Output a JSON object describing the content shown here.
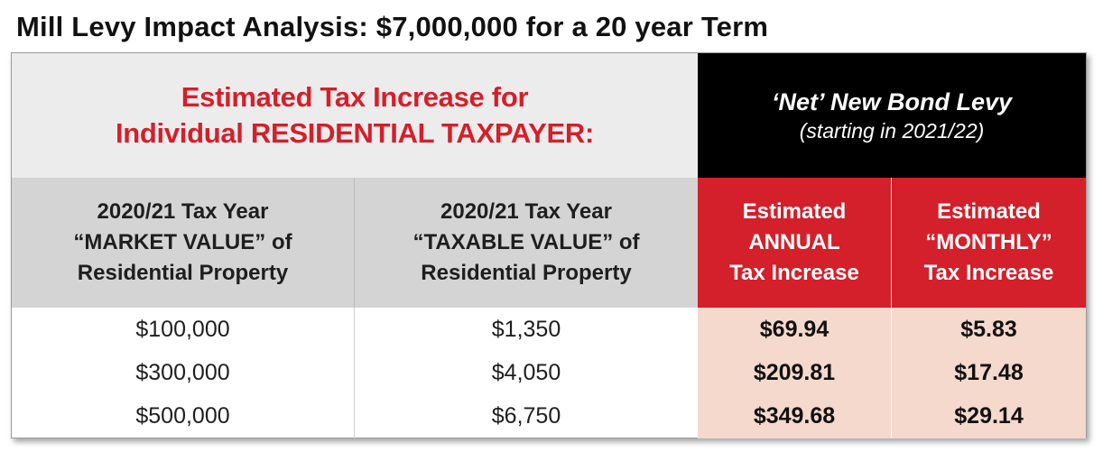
{
  "title": "Mill Levy Impact Analysis:  $7,000,000 for a 20 year Term",
  "header_left": {
    "line1": "Estimated Tax Increase for",
    "line2": "Individual RESIDENTIAL TAXPAYER:"
  },
  "header_right": {
    "line1": "‘Net’ New Bond Levy",
    "line2": "(starting in 2021/22)"
  },
  "columns": [
    {
      "lines": [
        "2020/21 Tax Year",
        "“MARKET VALUE” of",
        "Residential Property"
      ]
    },
    {
      "lines": [
        "2020/21 Tax Year",
        "“TAXABLE VALUE” of",
        "Residential Property"
      ]
    },
    {
      "lines": [
        "Estimated",
        "ANNUAL",
        "Tax Increase"
      ]
    },
    {
      "lines": [
        "Estimated",
        "“MONTHLY”",
        "Tax Increase"
      ]
    }
  ],
  "rows": [
    [
      "$100,000",
      "$1,350",
      "$69.94",
      "$5.83"
    ],
    [
      "$300,000",
      "$4,050",
      "$209.81",
      "$17.48"
    ],
    [
      "$500,000",
      "$6,750",
      "$349.68",
      "$29.14"
    ]
  ],
  "colors": {
    "accent_red": "#d3202a",
    "header_black": "#000000",
    "light_grey": "#ececec",
    "mid_grey": "#d4d4d4",
    "peach": "#f5d9cc"
  }
}
